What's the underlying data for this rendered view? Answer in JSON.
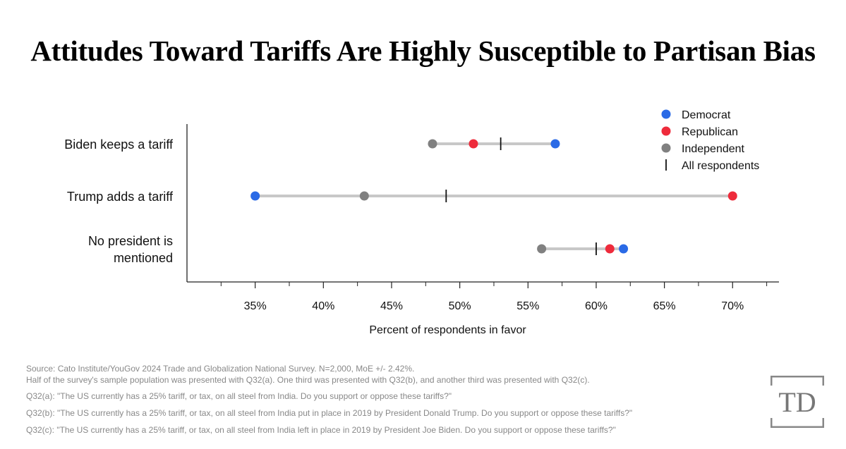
{
  "title": "Attitudes Toward Tariffs Are Highly Susceptible to Partisan Bias",
  "chart_data": {
    "type": "dot-range",
    "title": "Attitudes Toward Tariffs Are Highly Susceptible to Partisan Bias",
    "xlabel": "Percent of respondents in favor",
    "ylabel": "",
    "xlim": [
      30,
      73.4
    ],
    "xticks": [
      35,
      40,
      45,
      50,
      55,
      60,
      65,
      70
    ],
    "xtick_labels": [
      "35%",
      "40%",
      "45%",
      "50%",
      "55%",
      "60%",
      "65%",
      "70%"
    ],
    "minor_ticks": [
      32.5,
      37.5,
      42.5,
      47.5,
      52.5,
      57.5,
      62.5,
      67.5,
      72.5
    ],
    "legend_position": "top-right",
    "legend": [
      {
        "key": "democrat",
        "label": "Democrat",
        "color": "#2a6ae6",
        "mark": "dot"
      },
      {
        "key": "republican",
        "label": "Republican",
        "color": "#ee2b3b",
        "mark": "dot"
      },
      {
        "key": "independent",
        "label": "Independent",
        "color": "#808080",
        "mark": "dot"
      },
      {
        "key": "all",
        "label": "All respondents",
        "color": "#111111",
        "mark": "line"
      }
    ],
    "categories": [
      {
        "label_lines": [
          "Biden keeps a tariff"
        ],
        "democrat": 57,
        "republican": 51,
        "independent": 48,
        "all": 53
      },
      {
        "label_lines": [
          "Trump adds a tariff"
        ],
        "democrat": 35,
        "republican": 70,
        "independent": 43,
        "all": 49
      },
      {
        "label_lines": [
          "No president is",
          "mentioned"
        ],
        "democrat": 62,
        "republican": 61,
        "independent": 56,
        "all": 60
      }
    ]
  },
  "footnotes": [
    "Source: Cato Institute/YouGov 2024 Trade and Globalization National Survey. N=2,000, MoE +/- 2.42%.",
    "Half of the survey's sample population was presented with Q32(a). One third was presented with Q32(b), and another third was presented with Q32(c).",
    "Q32(a): \"The US currently has a 25% tariff, or tax, on all steel from India. Do you support or oppose these tariffs?\"",
    "Q32(b): \"The US currently has a 25% tariff, or tax, on all steel from India put in place in 2019 by President Donald Trump. Do you support or oppose these tariffs?\"",
    "Q32(c): \"The US currently has a 25% tariff, or tax, on all steel from India left in place in 2019 by President Joe Biden. Do you support or oppose these tariffs?\""
  ],
  "logo": {
    "text": "TD"
  }
}
